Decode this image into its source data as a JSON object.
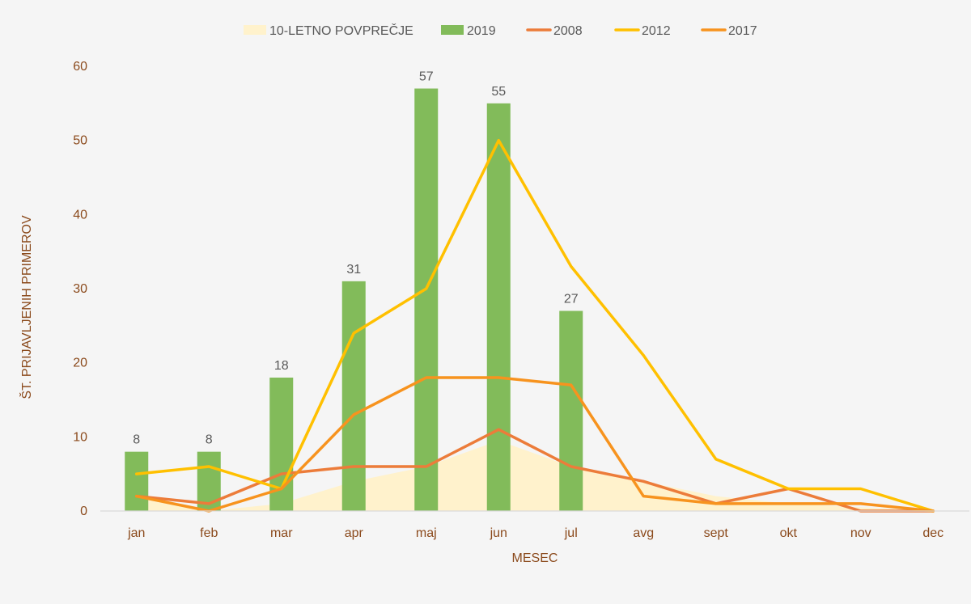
{
  "chart_data": {
    "type": "bar",
    "categories": [
      "jan",
      "feb",
      "mar",
      "apr",
      "maj",
      "jun",
      "jul",
      "avg",
      "sept",
      "okt",
      "nov",
      "dec"
    ],
    "xlabel": "MESEC",
    "ylabel": "ŠT. PRIJAVLJENIH PRIMEROV",
    "ylim": [
      0,
      60
    ],
    "yticks": [
      0,
      10,
      20,
      30,
      40,
      50,
      60
    ],
    "grid": false,
    "legend_position": "top",
    "series": [
      {
        "name": "10-LETNO POVPREČJE",
        "type": "area",
        "color": "#fff2cc",
        "values": [
          2,
          0,
          1,
          4,
          6,
          9.5,
          6,
          4,
          2,
          1,
          0.5,
          0
        ]
      },
      {
        "name": "2019",
        "type": "bar",
        "color": "#82bb5a",
        "values": [
          8,
          8,
          18,
          31,
          57,
          55,
          27,
          null,
          null,
          null,
          null,
          null
        ],
        "data_labels": [
          "8",
          "8",
          "18",
          "31",
          "57",
          "55",
          "27"
        ]
      },
      {
        "name": "2008",
        "type": "line",
        "color": "#ec7c3a",
        "values": [
          2,
          1,
          5,
          6,
          6,
          11,
          6,
          4,
          1,
          3,
          0,
          0
        ]
      },
      {
        "name": "2012",
        "type": "line",
        "color": "#ffc000",
        "values": [
          5,
          6,
          3,
          24,
          30,
          50,
          33,
          21,
          7,
          3,
          3,
          0
        ]
      },
      {
        "name": "2017",
        "type": "line",
        "color": "#f7931e",
        "values": [
          2,
          0,
          3,
          13,
          18,
          18,
          17,
          2,
          1,
          1,
          1,
          0
        ]
      }
    ],
    "colors": {
      "tick_text": "#8b4a1c",
      "axis_line": "#d9d9d9",
      "background": "#f5f5f5"
    }
  }
}
